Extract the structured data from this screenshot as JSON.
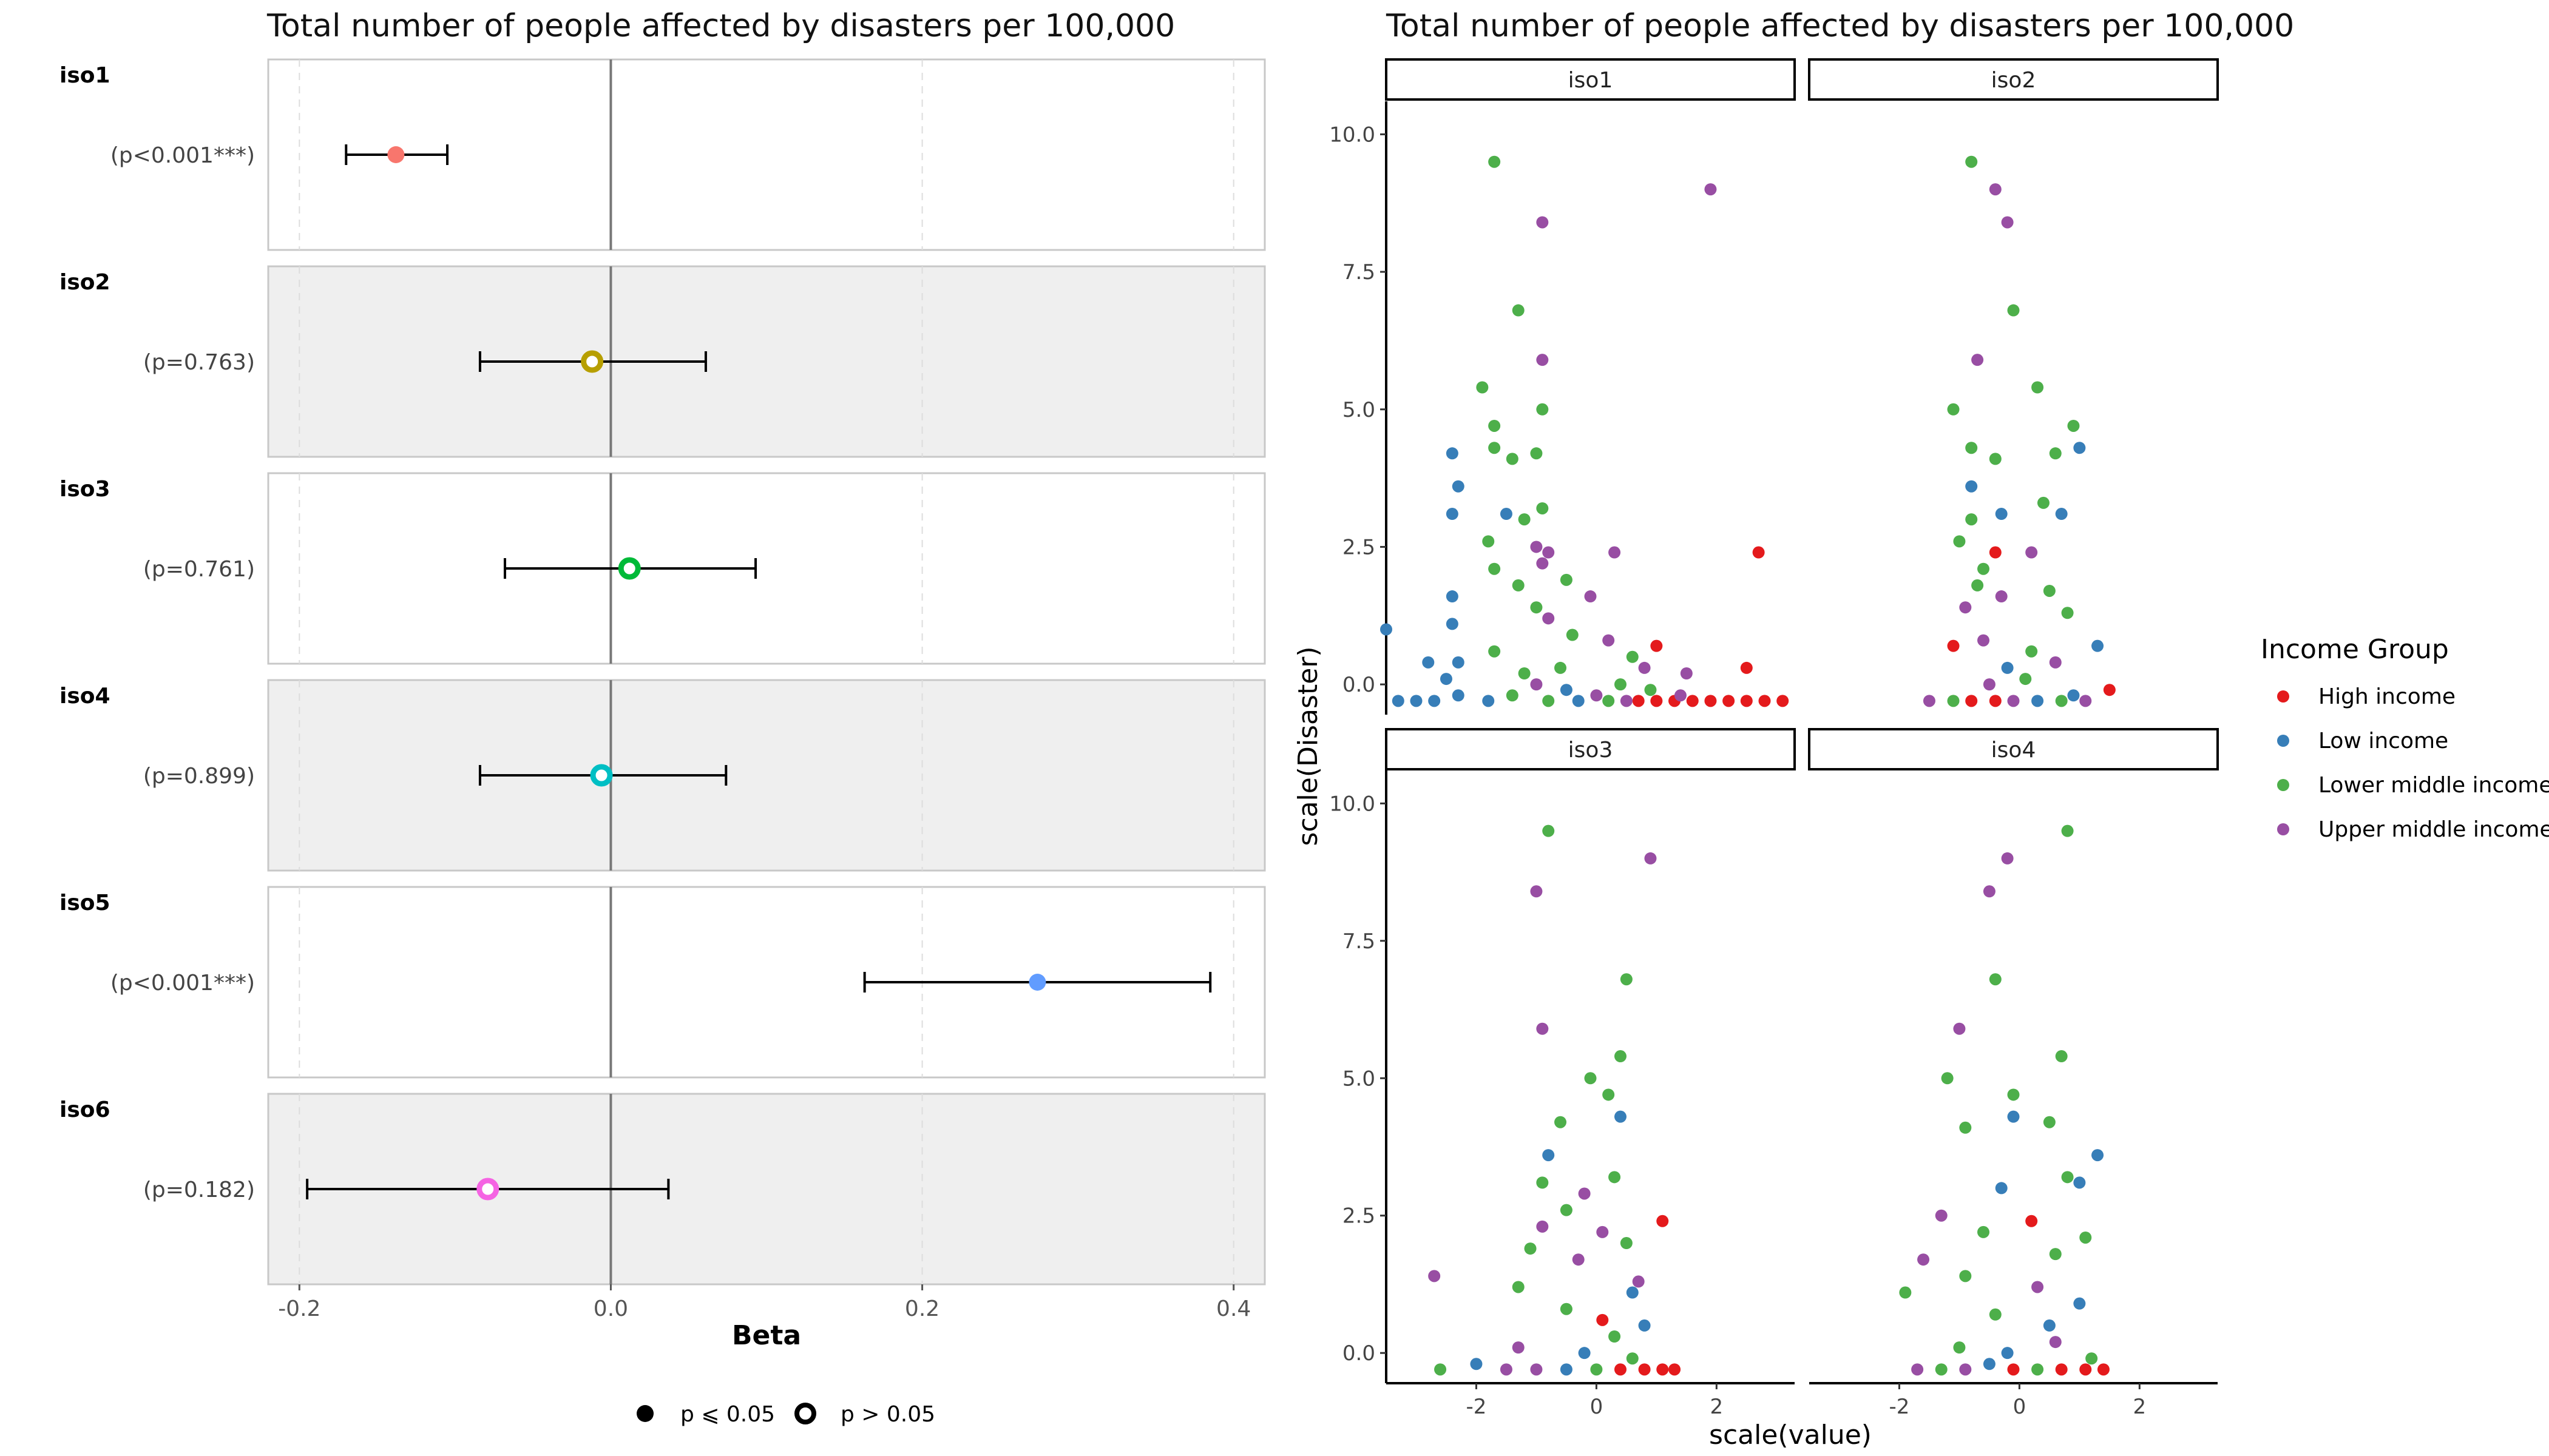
{
  "chart_data": [
    {
      "type": "forest",
      "title": "Total number of people affected by disasters per 100,000",
      "xlabel": "Beta",
      "xlim": [
        -0.22,
        0.42
      ],
      "xticks": [
        -0.2,
        0.0,
        0.2,
        0.4
      ],
      "xtick_labels": [
        "-0.2",
        "0.0",
        "0.2",
        "0.4"
      ],
      "reference_line": 0,
      "rows": [
        {
          "name": "iso1",
          "p_label": "(p<0.001***)",
          "estimate": -0.138,
          "ci": [
            -0.17,
            -0.105
          ],
          "significant": true,
          "color": "#F8766D",
          "shaded": false
        },
        {
          "name": "iso2",
          "p_label": "(p=0.763)",
          "estimate": -0.012,
          "ci": [
            -0.084,
            0.061
          ],
          "significant": false,
          "color": "#B79F00",
          "shaded": true
        },
        {
          "name": "iso3",
          "p_label": "(p=0.761)",
          "estimate": 0.012,
          "ci": [
            -0.068,
            0.093
          ],
          "significant": false,
          "color": "#00BA38",
          "shaded": false
        },
        {
          "name": "iso4",
          "p_label": "(p=0.899)",
          "estimate": -0.006,
          "ci": [
            -0.084,
            0.074
          ],
          "significant": false,
          "color": "#00BFC4",
          "shaded": true
        },
        {
          "name": "iso5",
          "p_label": "(p<0.001***)",
          "estimate": 0.274,
          "ci": [
            0.163,
            0.385
          ],
          "significant": true,
          "color": "#619CFF",
          "shaded": false
        },
        {
          "name": "iso6",
          "p_label": "(p=0.182)",
          "estimate": -0.079,
          "ci": [
            -0.195,
            0.037
          ],
          "significant": false,
          "color": "#F564E3",
          "shaded": true
        }
      ],
      "legend": [
        {
          "label": "p ⩽ 0.05",
          "marker": "filled"
        },
        {
          "label": "p > 0.05",
          "marker": "open"
        }
      ]
    },
    {
      "type": "scatter",
      "title": "Total number of people affected by disasters per 100,000",
      "xlabel": "scale(value)",
      "ylabel": "scale(Disaster)",
      "xlim": [
        -3.5,
        3.3
      ],
      "ylim": [
        -0.55,
        10.6
      ],
      "xticks": [
        -2,
        0,
        2
      ],
      "yticks": [
        0.0,
        2.5,
        5.0,
        7.5,
        10.0
      ],
      "ytick_labels": [
        "0.0",
        "2.5",
        "5.0",
        "7.5",
        "10.0"
      ],
      "legend_title": "Income Group",
      "groups": [
        {
          "name": "High income",
          "color": "#E41A1C"
        },
        {
          "name": "Low income",
          "color": "#377EB8"
        },
        {
          "name": "Lower middle income",
          "color": "#4DAF4A"
        },
        {
          "name": "Upper middle income",
          "color": "#984EA3"
        }
      ],
      "facets": [
        {
          "label": "iso1",
          "points": [
            [
              -1.7,
              9.5,
              2
            ],
            [
              1.9,
              9.0,
              3
            ],
            [
              -0.9,
              8.4,
              3
            ],
            [
              -1.3,
              6.8,
              2
            ],
            [
              -1.9,
              5.4,
              2
            ],
            [
              -0.9,
              5.9,
              3
            ],
            [
              -0.9,
              5.0,
              2
            ],
            [
              -1.7,
              4.7,
              2
            ],
            [
              -2.4,
              4.2,
              1
            ],
            [
              -1.7,
              4.3,
              2
            ],
            [
              -1.0,
              4.2,
              2
            ],
            [
              -1.4,
              4.1,
              2
            ],
            [
              -2.3,
              3.6,
              1
            ],
            [
              -2.4,
              3.1,
              1
            ],
            [
              -1.5,
              3.1,
              1
            ],
            [
              -1.2,
              3.0,
              2
            ],
            [
              -0.9,
              3.2,
              2
            ],
            [
              -1.8,
              2.6,
              2
            ],
            [
              -1.0,
              2.5,
              3
            ],
            [
              -0.8,
              2.4,
              3
            ],
            [
              0.3,
              2.4,
              3
            ],
            [
              2.7,
              2.4,
              0
            ],
            [
              -1.3,
              1.8,
              2
            ],
            [
              -0.9,
              2.2,
              3
            ],
            [
              -1.7,
              2.1,
              2
            ],
            [
              -0.5,
              1.9,
              2
            ],
            [
              -0.1,
              1.6,
              3
            ],
            [
              -1.0,
              1.4,
              2
            ],
            [
              -0.8,
              1.2,
              3
            ],
            [
              -2.4,
              1.6,
              1
            ],
            [
              -3.5,
              1.0,
              1
            ],
            [
              -2.4,
              1.1,
              1
            ],
            [
              -2.8,
              0.4,
              1
            ],
            [
              -2.3,
              0.4,
              1
            ],
            [
              -2.5,
              0.1,
              1
            ],
            [
              -1.7,
              0.6,
              2
            ],
            [
              -1.2,
              0.2,
              2
            ],
            [
              -0.6,
              0.3,
              2
            ],
            [
              -0.4,
              0.9,
              2
            ],
            [
              0.2,
              0.8,
              3
            ],
            [
              0.6,
              0.5,
              2
            ],
            [
              1.0,
              0.7,
              0
            ],
            [
              0.8,
              0.3,
              3
            ],
            [
              1.5,
              0.2,
              3
            ],
            [
              2.5,
              0.3,
              0
            ],
            [
              0.0,
              -0.2,
              3
            ],
            [
              -3.3,
              -0.3,
              1
            ],
            [
              -3.0,
              -0.3,
              1
            ],
            [
              -2.7,
              -0.3,
              1
            ],
            [
              -2.3,
              -0.2,
              1
            ],
            [
              -1.8,
              -0.3,
              1
            ],
            [
              -1.4,
              -0.2,
              2
            ],
            [
              -0.8,
              -0.3,
              2
            ],
            [
              -0.3,
              -0.3,
              1
            ],
            [
              0.2,
              -0.3,
              2
            ],
            [
              0.7,
              -0.3,
              0
            ],
            [
              1.0,
              -0.3,
              0
            ],
            [
              1.3,
              -0.3,
              0
            ],
            [
              1.6,
              -0.3,
              0
            ],
            [
              1.9,
              -0.3,
              0
            ],
            [
              2.2,
              -0.3,
              0
            ],
            [
              2.5,
              -0.3,
              0
            ],
            [
              2.8,
              -0.3,
              0
            ],
            [
              3.1,
              -0.3,
              0
            ],
            [
              0.5,
              -0.3,
              3
            ],
            [
              -0.5,
              -0.1,
              1
            ],
            [
              0.4,
              0.0,
              2
            ],
            [
              -1.0,
              0.0,
              3
            ],
            [
              0.9,
              -0.1,
              2
            ],
            [
              1.4,
              -0.2,
              3
            ]
          ]
        },
        {
          "label": "iso2",
          "points": [
            [
              -0.8,
              9.5,
              2
            ],
            [
              -0.4,
              9.0,
              3
            ],
            [
              -0.2,
              8.4,
              3
            ],
            [
              -0.1,
              6.8,
              2
            ],
            [
              -0.7,
              5.9,
              3
            ],
            [
              0.3,
              5.4,
              2
            ],
            [
              -1.1,
              5.0,
              2
            ],
            [
              0.9,
              4.7,
              2
            ],
            [
              -0.8,
              4.3,
              2
            ],
            [
              -0.4,
              4.1,
              2
            ],
            [
              0.6,
              4.2,
              2
            ],
            [
              1.0,
              4.3,
              1
            ],
            [
              -0.8,
              3.6,
              1
            ],
            [
              0.4,
              3.3,
              2
            ],
            [
              -0.3,
              3.1,
              1
            ],
            [
              -0.8,
              3.0,
              2
            ],
            [
              0.7,
              3.1,
              1
            ],
            [
              -1.0,
              2.6,
              2
            ],
            [
              -0.4,
              2.4,
              0
            ],
            [
              -0.6,
              2.1,
              2
            ],
            [
              0.2,
              2.4,
              3
            ],
            [
              -0.7,
              1.8,
              2
            ],
            [
              0.5,
              1.7,
              2
            ],
            [
              -0.3,
              1.6,
              3
            ],
            [
              -0.9,
              1.4,
              3
            ],
            [
              0.8,
              1.3,
              2
            ],
            [
              -1.1,
              0.7,
              0
            ],
            [
              -0.6,
              0.8,
              3
            ],
            [
              0.2,
              0.6,
              2
            ],
            [
              1.3,
              0.7,
              1
            ],
            [
              -0.2,
              0.3,
              1
            ],
            [
              0.6,
              0.4,
              3
            ],
            [
              -1.5,
              -0.3,
              3
            ],
            [
              -1.1,
              -0.3,
              2
            ],
            [
              -0.8,
              -0.3,
              0
            ],
            [
              -0.4,
              -0.3,
              0
            ],
            [
              -0.1,
              -0.3,
              3
            ],
            [
              0.3,
              -0.3,
              1
            ],
            [
              0.7,
              -0.3,
              2
            ],
            [
              1.1,
              -0.3,
              3
            ],
            [
              1.5,
              -0.1,
              0
            ],
            [
              -0.5,
              0.0,
              3
            ],
            [
              0.1,
              0.1,
              2
            ],
            [
              0.9,
              -0.2,
              1
            ]
          ]
        },
        {
          "label": "iso3",
          "points": [
            [
              -0.8,
              9.5,
              2
            ],
            [
              0.9,
              9.0,
              3
            ],
            [
              -1.0,
              8.4,
              3
            ],
            [
              0.5,
              6.8,
              2
            ],
            [
              -0.9,
              5.9,
              3
            ],
            [
              0.4,
              5.4,
              2
            ],
            [
              -0.1,
              5.0,
              2
            ],
            [
              0.2,
              4.7,
              2
            ],
            [
              -0.6,
              4.2,
              2
            ],
            [
              0.4,
              4.3,
              1
            ],
            [
              -0.8,
              3.6,
              1
            ],
            [
              -0.9,
              3.1,
              2
            ],
            [
              0.3,
              3.2,
              2
            ],
            [
              -0.2,
              2.9,
              3
            ],
            [
              -0.5,
              2.6,
              2
            ],
            [
              1.1,
              2.4,
              0
            ],
            [
              -0.9,
              2.3,
              3
            ],
            [
              0.1,
              2.2,
              3
            ],
            [
              -1.1,
              1.9,
              2
            ],
            [
              0.5,
              2.0,
              2
            ],
            [
              -0.3,
              1.7,
              3
            ],
            [
              0.7,
              1.3,
              3
            ],
            [
              -2.7,
              1.4,
              3
            ],
            [
              -1.3,
              1.2,
              2
            ],
            [
              0.6,
              1.1,
              1
            ],
            [
              -0.5,
              0.8,
              2
            ],
            [
              0.1,
              0.6,
              0
            ],
            [
              0.8,
              0.5,
              1
            ],
            [
              -2.6,
              -0.3,
              2
            ],
            [
              -2.0,
              -0.2,
              1
            ],
            [
              -1.5,
              -0.3,
              3
            ],
            [
              -1.0,
              -0.3,
              3
            ],
            [
              -0.5,
              -0.3,
              1
            ],
            [
              0.0,
              -0.3,
              2
            ],
            [
              0.4,
              -0.3,
              0
            ],
            [
              0.8,
              -0.3,
              0
            ],
            [
              1.1,
              -0.3,
              0
            ],
            [
              1.3,
              -0.3,
              0
            ],
            [
              -0.2,
              0.0,
              1
            ],
            [
              0.3,
              0.3,
              2
            ],
            [
              -1.3,
              0.1,
              3
            ],
            [
              0.6,
              -0.1,
              2
            ]
          ]
        },
        {
          "label": "iso4",
          "points": [
            [
              0.8,
              9.5,
              2
            ],
            [
              -0.2,
              9.0,
              3
            ],
            [
              -0.5,
              8.4,
              3
            ],
            [
              -0.4,
              6.8,
              2
            ],
            [
              -1.0,
              5.9,
              3
            ],
            [
              0.7,
              5.4,
              2
            ],
            [
              -1.2,
              5.0,
              2
            ],
            [
              -0.1,
              4.7,
              2
            ],
            [
              0.5,
              4.2,
              2
            ],
            [
              -0.1,
              4.3,
              1
            ],
            [
              1.3,
              3.6,
              1
            ],
            [
              -0.9,
              4.1,
              2
            ],
            [
              0.8,
              3.2,
              2
            ],
            [
              -0.3,
              3.0,
              1
            ],
            [
              1.0,
              3.1,
              1
            ],
            [
              -1.3,
              2.5,
              3
            ],
            [
              0.2,
              2.4,
              0
            ],
            [
              -0.6,
              2.2,
              2
            ],
            [
              1.1,
              2.1,
              2
            ],
            [
              -1.6,
              1.7,
              3
            ],
            [
              0.6,
              1.8,
              2
            ],
            [
              -0.9,
              1.4,
              2
            ],
            [
              0.3,
              1.2,
              3
            ],
            [
              -1.9,
              1.1,
              2
            ],
            [
              1.0,
              0.9,
              1
            ],
            [
              -0.4,
              0.7,
              2
            ],
            [
              0.5,
              0.5,
              1
            ],
            [
              -1.7,
              -0.3,
              3
            ],
            [
              -1.3,
              -0.3,
              2
            ],
            [
              -0.9,
              -0.3,
              3
            ],
            [
              -0.5,
              -0.2,
              1
            ],
            [
              -0.1,
              -0.3,
              0
            ],
            [
              0.3,
              -0.3,
              2
            ],
            [
              0.7,
              -0.3,
              0
            ],
            [
              1.1,
              -0.3,
              0
            ],
            [
              1.4,
              -0.3,
              0
            ],
            [
              -0.2,
              0.0,
              1
            ],
            [
              0.6,
              0.2,
              3
            ],
            [
              -1.0,
              0.1,
              2
            ],
            [
              1.2,
              -0.1,
              2
            ]
          ]
        }
      ]
    }
  ]
}
